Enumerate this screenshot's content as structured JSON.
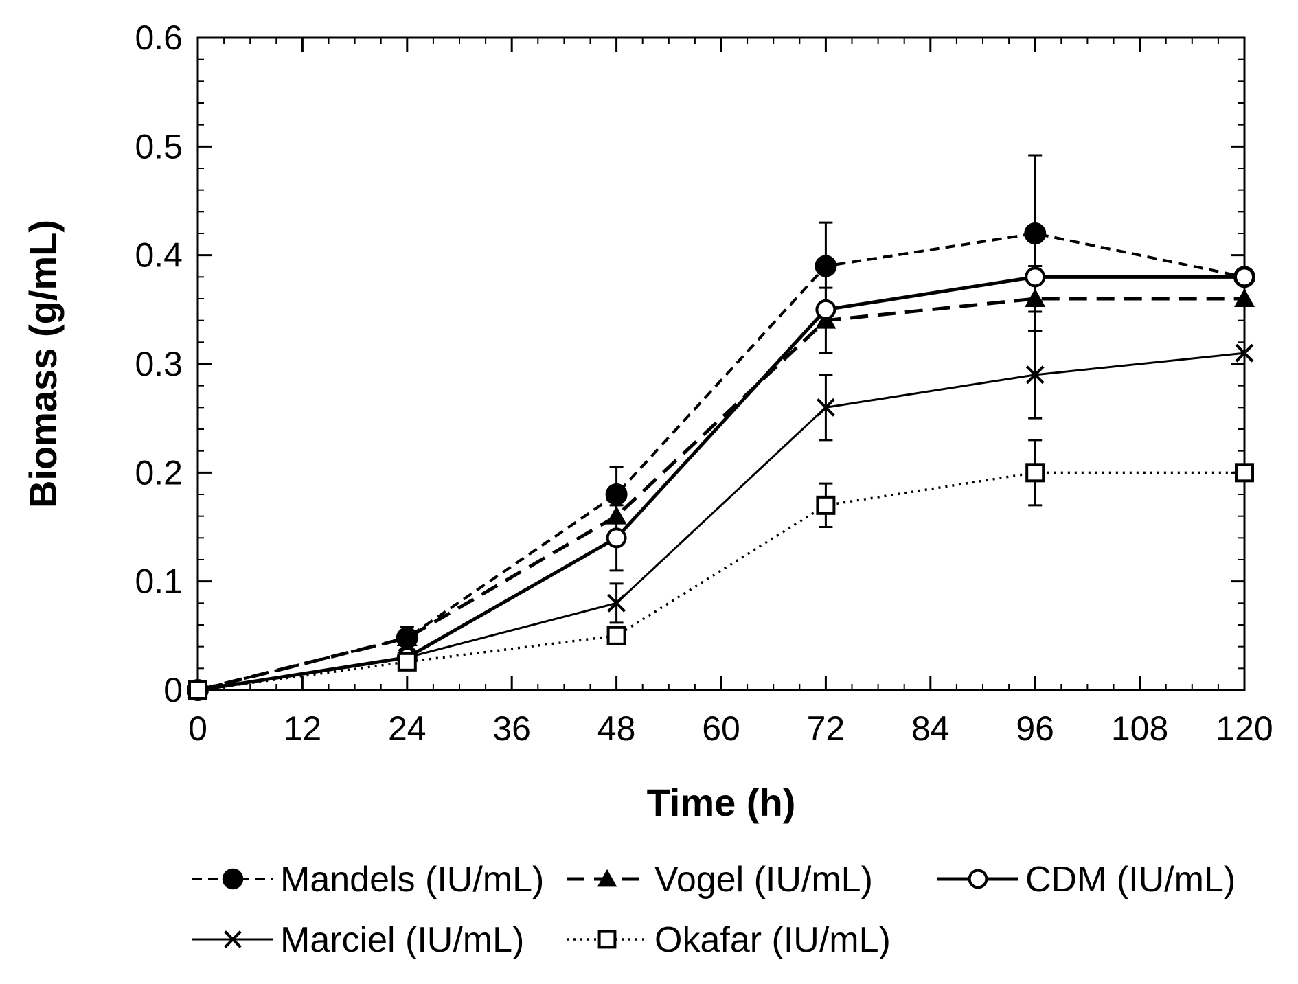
{
  "chart_data": {
    "type": "line",
    "title": "",
    "xlabel": "Time (h)",
    "ylabel": "Biomass (g/mL)",
    "xlim": [
      0,
      120
    ],
    "ylim": [
      0,
      0.6
    ],
    "x_ticks": [
      0,
      12,
      24,
      36,
      48,
      60,
      72,
      84,
      96,
      108,
      120
    ],
    "y_ticks": [
      0,
      0.1,
      0.2,
      0.3,
      0.4,
      0.5,
      0.6
    ],
    "y_tick_labels": [
      "0",
      "0.1",
      "0.2",
      "0.3",
      "0.4",
      "0.5",
      "0.6"
    ],
    "grid": false,
    "legend_placement": "bottom",
    "x": [
      0,
      24,
      48,
      72,
      96,
      120
    ],
    "series": [
      {
        "name": "Mandels (IU/mL)",
        "values": [
          0,
          0.048,
          0.18,
          0.39,
          0.42,
          0.38
        ],
        "errors": [
          0,
          0.01,
          0.025,
          0.04,
          0.072,
          0
        ],
        "marker": "filled-circle",
        "line": "short-dash"
      },
      {
        "name": "Vogel (IU/mL)",
        "values": [
          0,
          0.048,
          0.16,
          0.34,
          0.36,
          0.36
        ],
        "errors": [
          0,
          0,
          0,
          0.03,
          0.03,
          0
        ],
        "marker": "filled-triangle",
        "line": "long-dash"
      },
      {
        "name": "CDM (IU/mL)",
        "values": [
          0,
          0.03,
          0.14,
          0.35,
          0.38,
          0.38
        ],
        "errors": [
          0,
          0,
          0.03,
          0,
          0,
          0
        ],
        "marker": "open-circle",
        "line": "solid-thick"
      },
      {
        "name": "Marciel (IU/mL)",
        "values": [
          0,
          0.03,
          0.08,
          0.26,
          0.29,
          0.31
        ],
        "errors": [
          0,
          0,
          0.018,
          0.03,
          0.04,
          0
        ],
        "marker": "x",
        "line": "solid-thin"
      },
      {
        "name": "Okafar (IU/mL)",
        "values": [
          0,
          0.026,
          0.05,
          0.17,
          0.2,
          0.2
        ],
        "errors": [
          0,
          0,
          0,
          0.02,
          0.03,
          0
        ],
        "marker": "open-square",
        "line": "dotted"
      }
    ]
  }
}
